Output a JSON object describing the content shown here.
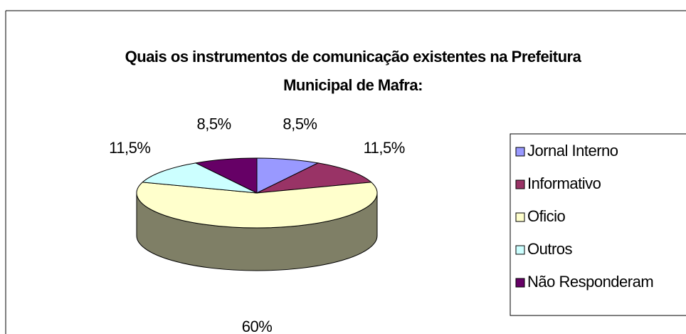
{
  "chart_data": {
    "type": "pie3d",
    "title": "Quais os instrumentos de comunicação existentes na Prefeitura Municipal de Mafra:",
    "categories": [
      "Jornal Interno",
      "Informativo",
      "Oficio",
      "Outros",
      "Não Responderam"
    ],
    "values": [
      8.5,
      11.5,
      60,
      11.5,
      8.5
    ],
    "value_labels": [
      "8,5%",
      "11,5%",
      "60%",
      "11,5%",
      "8,5%"
    ],
    "colors": [
      "#9999FF",
      "#993366",
      "#FFFFCC",
      "#CCFFFF",
      "#660066"
    ],
    "legend": "right"
  }
}
